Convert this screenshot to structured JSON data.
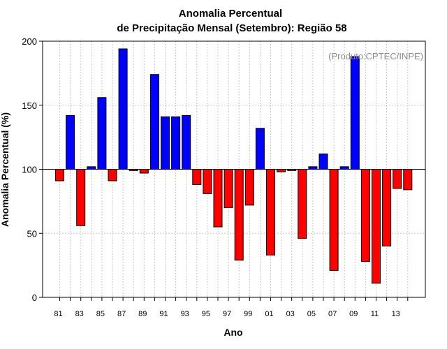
{
  "chart_data": {
    "type": "bar",
    "title": "Anomalia Percentual",
    "subtitle": "de Precipitação Mensal (Setembro): Região 58",
    "xlabel": "Ano",
    "ylabel": "Anomalia Percentual (%)",
    "credit": "(Produto:CPTEC/INPE)",
    "baseline": 100,
    "ylim": [
      0,
      200
    ],
    "yticks": [
      "0",
      "50",
      "100",
      "150",
      "200"
    ],
    "grid": true,
    "colors": {
      "above": "#0000ff",
      "below": "#ff0000",
      "outline": "#000000"
    },
    "categories": [
      "81",
      "82",
      "83",
      "84",
      "85",
      "86",
      "87",
      "88",
      "89",
      "90",
      "91",
      "92",
      "93",
      "94",
      "95",
      "96",
      "97",
      "98",
      "99",
      "00",
      "01",
      "02",
      "03",
      "04",
      "05",
      "06",
      "07",
      "08",
      "09",
      "10",
      "11",
      "12",
      "13",
      "14"
    ],
    "xtick_labels": [
      "81",
      "83",
      "85",
      "87",
      "89",
      "91",
      "93",
      "95",
      "97",
      "99",
      "01",
      "03",
      "05",
      "07",
      "09",
      "11",
      "13"
    ],
    "values": [
      91,
      142,
      56,
      102,
      156,
      91,
      194,
      99,
      97,
      174,
      141,
      141,
      142,
      88,
      81,
      55,
      70,
      29,
      72,
      132,
      33,
      98,
      99,
      46,
      102,
      112,
      21,
      102,
      188,
      28,
      11,
      40,
      85,
      84
    ]
  }
}
